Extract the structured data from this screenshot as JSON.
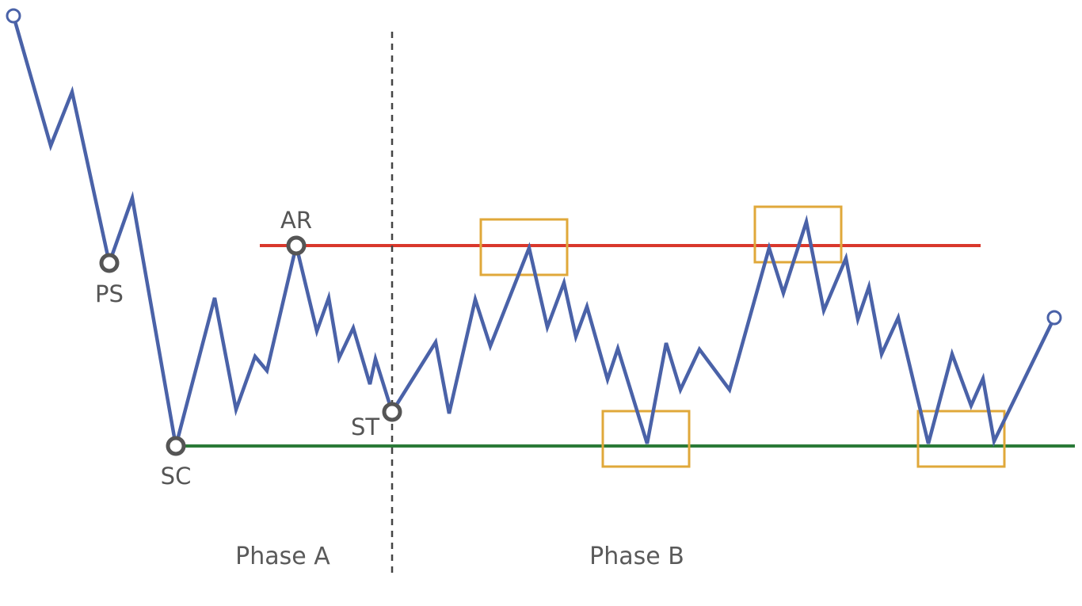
{
  "colors": {
    "price": "#4a62a8",
    "resistance": "#d9382c",
    "support": "#2a7a38",
    "highlight": "#e0a83a",
    "marker": "#555555",
    "divider": "#444444",
    "text": "#555555"
  },
  "markers": {
    "ps": "PS",
    "sc": "SC",
    "ar": "AR",
    "st": "ST"
  },
  "phases": {
    "a": "Phase A",
    "b": "Phase B"
  }
}
